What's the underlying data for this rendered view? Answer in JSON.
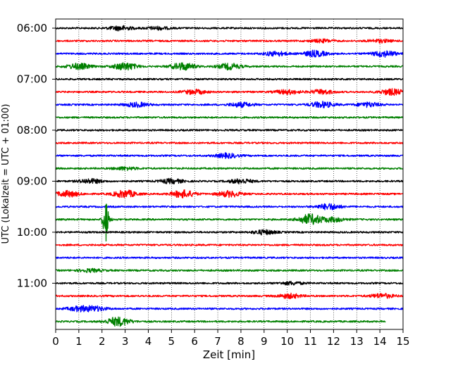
{
  "chart_data": {
    "type": "line",
    "title": "",
    "xlabel": "Zeit  [min]",
    "ylabel": "UTC (Lokalzeit = UTC + 01:00)",
    "xlim": [
      0,
      15
    ],
    "x_ticks": [
      0,
      1,
      2,
      3,
      4,
      5,
      6,
      7,
      8,
      9,
      10,
      11,
      12,
      13,
      14,
      15
    ],
    "y_ticks": [
      "06:00",
      "07:00",
      "08:00",
      "09:00",
      "10:00",
      "11:00"
    ],
    "grid": "vertical dotted",
    "colors": [
      "#000000",
      "#ff0000",
      "#0000ff",
      "#008000"
    ],
    "traces": [
      {
        "label": "06:00",
        "color": "black",
        "end": 15,
        "events": [
          {
            "x": 2.8,
            "amp": 3
          },
          {
            "x": 4.4,
            "amp": 2
          }
        ]
      },
      {
        "label": "06:15",
        "color": "red",
        "end": 15,
        "events": [
          {
            "x": 11.5,
            "amp": 2
          },
          {
            "x": 14.0,
            "amp": 2
          }
        ]
      },
      {
        "label": "06:30",
        "color": "blue",
        "end": 15,
        "events": [
          {
            "x": 9.5,
            "amp": 3
          },
          {
            "x": 11.2,
            "amp": 4
          },
          {
            "x": 14.2,
            "amp": 4
          }
        ]
      },
      {
        "label": "06:45",
        "color": "green",
        "end": 15,
        "events": [
          {
            "x": 1.0,
            "amp": 4
          },
          {
            "x": 3.0,
            "amp": 5
          },
          {
            "x": 5.5,
            "amp": 5
          },
          {
            "x": 7.5,
            "amp": 4
          }
        ]
      },
      {
        "label": "07:00",
        "color": "black",
        "end": 15,
        "events": []
      },
      {
        "label": "07:15",
        "color": "red",
        "end": 15,
        "events": [
          {
            "x": 6.0,
            "amp": 3
          },
          {
            "x": 10.0,
            "amp": 3
          },
          {
            "x": 11.5,
            "amp": 3
          },
          {
            "x": 14.5,
            "amp": 4
          }
        ]
      },
      {
        "label": "07:30",
        "color": "blue",
        "end": 15,
        "events": [
          {
            "x": 3.5,
            "amp": 3
          },
          {
            "x": 8.0,
            "amp": 3
          },
          {
            "x": 11.5,
            "amp": 4
          },
          {
            "x": 13.5,
            "amp": 3
          }
        ]
      },
      {
        "label": "07:45",
        "color": "green",
        "end": 15,
        "events": []
      },
      {
        "label": "08:00",
        "color": "black",
        "end": 15,
        "events": []
      },
      {
        "label": "08:15",
        "color": "red",
        "end": 15,
        "events": []
      },
      {
        "label": "08:30",
        "color": "blue",
        "end": 15,
        "events": [
          {
            "x": 7.4,
            "amp": 3
          }
        ]
      },
      {
        "label": "08:45",
        "color": "green",
        "end": 15,
        "events": [
          {
            "x": 3.0,
            "amp": 2
          }
        ]
      },
      {
        "label": "09:00",
        "color": "black",
        "end": 15,
        "events": [
          {
            "x": 1.5,
            "amp": 3
          },
          {
            "x": 5.0,
            "amp": 3
          },
          {
            "x": 8.0,
            "amp": 3
          }
        ]
      },
      {
        "label": "09:15",
        "color": "red",
        "end": 15,
        "events": [
          {
            "x": 0.5,
            "amp": 4
          },
          {
            "x": 3.0,
            "amp": 5
          },
          {
            "x": 5.5,
            "amp": 5
          },
          {
            "x": 7.5,
            "amp": 4
          }
        ]
      },
      {
        "label": "09:30",
        "color": "blue",
        "end": 15,
        "events": [
          {
            "x": 11.8,
            "amp": 4
          }
        ]
      },
      {
        "label": "09:45",
        "color": "green",
        "end": 15,
        "events": [
          {
            "x": 2.15,
            "amp": 30
          },
          {
            "x": 11.0,
            "amp": 7
          },
          {
            "x": 12.0,
            "amp": 3
          }
        ]
      },
      {
        "label": "10:00",
        "color": "black",
        "end": 15,
        "events": [
          {
            "x": 9.0,
            "amp": 3
          }
        ]
      },
      {
        "label": "10:15",
        "color": "red",
        "end": 15,
        "events": []
      },
      {
        "label": "10:30",
        "color": "blue",
        "end": 15,
        "events": []
      },
      {
        "label": "10:45",
        "color": "green",
        "end": 15,
        "events": [
          {
            "x": 1.5,
            "amp": 2
          }
        ]
      },
      {
        "label": "11:00",
        "color": "black",
        "end": 15,
        "events": [
          {
            "x": 10.2,
            "amp": 2
          }
        ]
      },
      {
        "label": "11:15",
        "color": "red",
        "end": 15,
        "events": [
          {
            "x": 10.1,
            "amp": 3
          },
          {
            "x": 14.1,
            "amp": 3
          }
        ]
      },
      {
        "label": "11:30",
        "color": "blue",
        "end": 15,
        "events": [
          {
            "x": 1.0,
            "amp": 3
          },
          {
            "x": 1.7,
            "amp": 3
          }
        ]
      },
      {
        "label": "11:45",
        "color": "green",
        "end": 14.25,
        "events": [
          {
            "x": 2.7,
            "amp": 6
          }
        ]
      }
    ]
  }
}
